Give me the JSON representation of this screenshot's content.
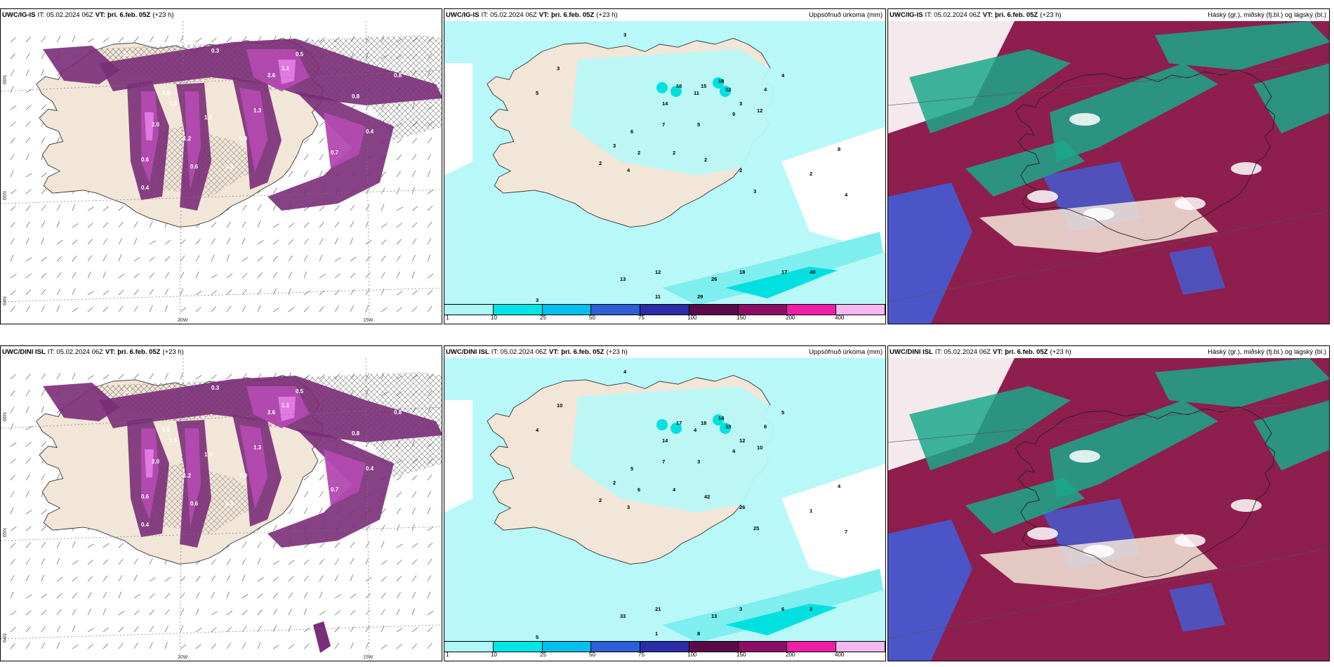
{
  "panels": [
    {
      "id": "p1",
      "model": "UWC/IG-IS",
      "it": "IT: 05.02.2024 06Z",
      "vt_label": "VT:",
      "vt_value": "þri. 6.feb. 05Z",
      "lead": "(+23 h)",
      "right_title": "",
      "lat_labels": [
        "66N",
        "65N",
        "64N"
      ],
      "lon_labels": [
        "20W",
        "15W"
      ],
      "type": "snow"
    },
    {
      "id": "p2",
      "model": "UWC/IG-IS",
      "it": "IT: 05.02.2024 06Z",
      "vt_label": "VT:",
      "vt_value": "þri. 6.feb. 05Z",
      "lead": "(+23 h)",
      "right_title": "Uppsöfnuð úrkoma (mm)",
      "lat_labels": [],
      "lon_labels": [],
      "type": "precip",
      "values": [
        "3",
        "3",
        "5",
        "11",
        "14",
        "16",
        "15",
        "18",
        "12",
        "3",
        "4",
        "4",
        "12",
        "9",
        "5",
        "7",
        "6",
        "3",
        "2",
        "4",
        "2",
        "2",
        "2",
        "2",
        "3",
        "13",
        "12",
        "26",
        "18",
        "17",
        "40",
        "29",
        "11",
        "16",
        "3",
        "4",
        "2",
        "8",
        "4"
      ]
    },
    {
      "id": "p3",
      "model": "UWC/IG-IS",
      "it": "IT: 05.02.2024 06Z",
      "vt_label": "VT:",
      "vt_value": "þri. 6.feb. 05Z",
      "lead": "(+23 h)",
      "right_title": "Háský (gr.), miðský (fj.bl.) og lágský (bl.)",
      "lat_labels": [],
      "lon_labels": [],
      "type": "clouds"
    },
    {
      "id": "p4",
      "model": "UWC/DINI ISL",
      "it": "IT: 05.02.2024 06Z",
      "vt_label": "VT:",
      "vt_value": "þri. 6.feb. 05Z",
      "lead": "(+23 h)",
      "right_title": "",
      "lat_labels": [
        "66N",
        "65N",
        "64N"
      ],
      "lon_labels": [
        "20W",
        "15W"
      ],
      "type": "snow"
    },
    {
      "id": "p5",
      "model": "UWC/DINI ISL",
      "it": "IT: 05.02.2024 06Z",
      "vt_label": "VT:",
      "vt_value": "þri. 6.feb. 05Z",
      "lead": "(+23 h)",
      "right_title": "Uppsöfnuð úrkoma (mm)",
      "lat_labels": [],
      "lon_labels": [],
      "type": "precip",
      "values": [
        "4",
        "10",
        "4",
        "4",
        "14",
        "17",
        "18",
        "14",
        "13",
        "12",
        "6",
        "5",
        "10",
        "4",
        "3",
        "7",
        "5",
        "2",
        "2",
        "3",
        "6",
        "4",
        "42",
        "26",
        "25",
        "33",
        "21",
        "13",
        "3",
        "6",
        "2",
        "8",
        "1",
        "1",
        "5",
        "2",
        "1",
        "4",
        "7"
      ]
    },
    {
      "id": "p6",
      "model": "UWC/DINI ISL",
      "it": "IT: 05.02.2024 06Z",
      "vt_label": "VT:",
      "vt_value": "þri. 6.feb. 05Z",
      "lead": "(+23 h)",
      "right_title": "Háský (gr.), miðský (fj.bl.) og lágský (bl.)",
      "lat_labels": [],
      "lon_labels": [],
      "type": "clouds"
    }
  ],
  "snow_labels": [
    "0.3",
    "0.3",
    "0.5",
    "0.8",
    "1.1",
    "1.5",
    "2.6",
    "1.2",
    "0.6",
    "0.9",
    "0.4",
    "2.0",
    "1.0",
    "0.7",
    "0.4",
    "0.3",
    "0.5",
    "1.3",
    "0.8",
    "0.6"
  ],
  "precip_legend": {
    "colors": [
      "#b2f7f7",
      "#00e6e6",
      "#00c0ee",
      "#2e5fd6",
      "#2c2ca8",
      "#5a0a48",
      "#8c0e64",
      "#ee1ea8",
      "#f6b8f0"
    ],
    "labels": [
      "1",
      "10",
      "25",
      "50",
      "75",
      "100",
      "150",
      "200",
      "400"
    ]
  },
  "colors": {
    "land": "#f2e6d8",
    "sea_precip": "#b8f8f8",
    "snow_dark": "#7a2e78",
    "snow_mid": "#b34ab0",
    "snow_light": "#e07ae2",
    "cloud_high": "#1aa88a",
    "cloud_mid": "#8e1e4e",
    "cloud_low": "#4a56c8"
  }
}
